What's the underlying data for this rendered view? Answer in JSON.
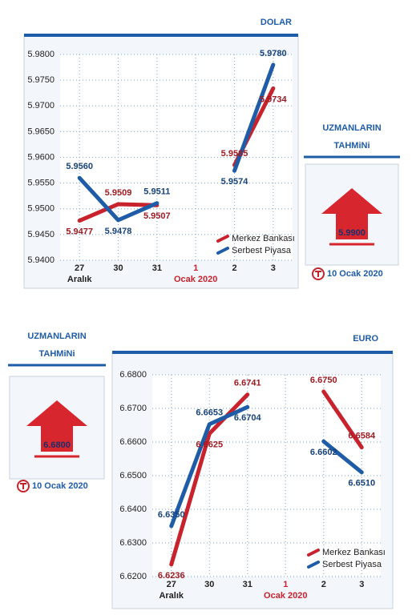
{
  "chart_data": [
    {
      "type": "line",
      "title": "DOLAR",
      "categories": [
        "27",
        "30",
        "31",
        "1",
        "2",
        "3"
      ],
      "month_labels": [
        "Aralık",
        null,
        null,
        "Ocak 2020",
        null,
        null
      ],
      "series": [
        {
          "name": "Merkez Bankası",
          "color": "#c8232c",
          "values": [
            5.9477,
            5.9509,
            5.9507,
            null,
            5.9585,
            5.9734
          ],
          "value_labels": [
            "5.9477",
            "5.9509",
            "5.9507",
            null,
            "5.9585",
            "5.9734"
          ]
        },
        {
          "name": "Serbest Piyasa",
          "color": "#1f5ca8",
          "values": [
            5.956,
            5.9478,
            5.9511,
            null,
            5.9574,
            5.978
          ],
          "value_labels": [
            "5.9560",
            "5.9478",
            "5.9511",
            null,
            "5.9574",
            "5.9780"
          ]
        }
      ],
      "ylim": [
        5.94,
        5.98
      ],
      "yticks": [
        {
          "value": 5.94,
          "label": "5.9400"
        },
        {
          "value": 5.945,
          "label": "5.9450"
        },
        {
          "value": 5.95,
          "label": "5.9500"
        },
        {
          "value": 5.955,
          "label": "5.9550"
        },
        {
          "value": 5.96,
          "label": "5.9600"
        },
        {
          "value": 5.965,
          "label": "5.9650"
        },
        {
          "value": 5.97,
          "label": "5.9700"
        },
        {
          "value": 5.975,
          "label": "5.9750"
        },
        {
          "value": 5.98,
          "label": "5.9800"
        }
      ],
      "grid": true,
      "legend": "lower right"
    },
    {
      "type": "line",
      "title": "EURO",
      "categories": [
        "27",
        "30",
        "31",
        "1",
        "2",
        "3"
      ],
      "month_labels": [
        "Aralık",
        null,
        null,
        "Ocak 2020",
        null,
        null
      ],
      "series": [
        {
          "name": "Merkez Bankası",
          "color": "#c8232c",
          "values": [
            6.6236,
            6.6625,
            6.6741,
            null,
            6.675,
            6.6584
          ],
          "value_labels": [
            "6.6236",
            "6.6625",
            "6.6741",
            null,
            "6.6750",
            "6.6584"
          ]
        },
        {
          "name": "Serbest Piyasa",
          "color": "#1f5ca8",
          "values": [
            6.635,
            6.6653,
            6.6704,
            null,
            6.6602,
            6.651
          ],
          "value_labels": [
            "6.6350",
            "6.6653",
            "6.6704",
            null,
            "6.6602",
            "6.6510"
          ]
        }
      ],
      "ylim": [
        6.62,
        6.68
      ],
      "yticks": [
        {
          "value": 6.62,
          "label": "6.6200"
        },
        {
          "value": 6.63,
          "label": "6.6300"
        },
        {
          "value": 6.64,
          "label": "6.6400"
        },
        {
          "value": 6.65,
          "label": "6.6500"
        },
        {
          "value": 6.66,
          "label": "6.6600"
        },
        {
          "value": 6.67,
          "label": "6.6700"
        },
        {
          "value": 6.68,
          "label": "6.6800"
        }
      ],
      "grid": true,
      "legend": "lower right"
    }
  ],
  "forecasts": [
    {
      "heading": [
        "UZMANLARIN",
        "TAHMiNi"
      ],
      "value": "5.9900",
      "date": "10 Ocak 2020"
    },
    {
      "heading": [
        "UZMANLARIN",
        "TAHMiNi"
      ],
      "value": "6.6800",
      "date": "10 Ocak 2020"
    }
  ]
}
